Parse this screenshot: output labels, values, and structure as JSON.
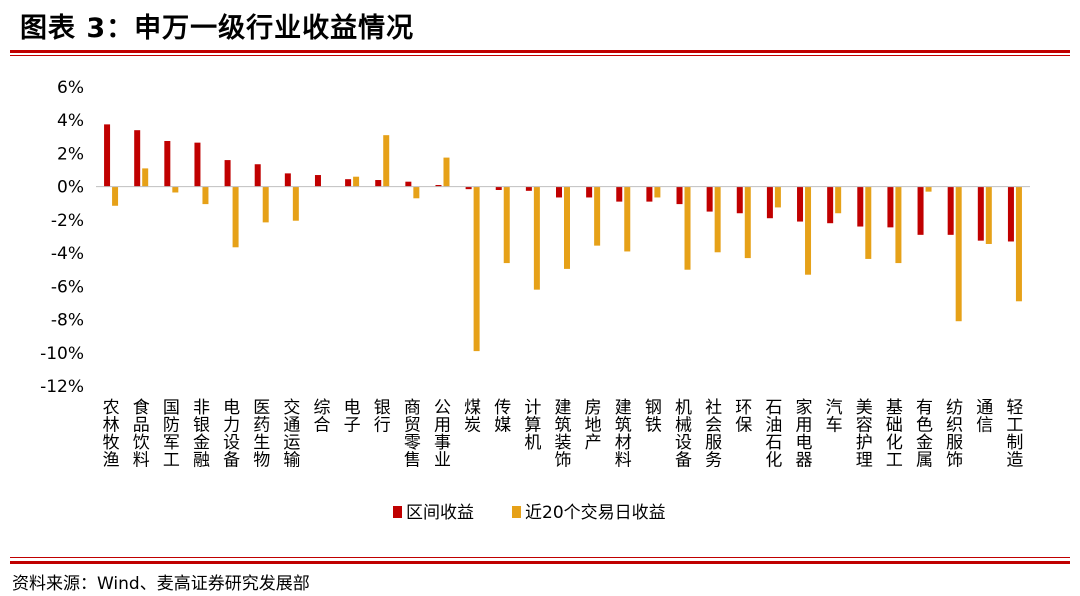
{
  "header": {
    "title": "图表 3：申万一级行业收益情况"
  },
  "footer": {
    "source": "资料来源：Wind、麦高证券研究发展部"
  },
  "colors": {
    "series1": "#c00000",
    "series2": "#e6a118",
    "rule": "#c00000"
  },
  "chart_data": {
    "type": "bar",
    "categories": [
      "农林牧渔",
      "食品饮料",
      "国防军工",
      "非银金融",
      "电力设备",
      "医药生物",
      "交通运输",
      "综合",
      "电子",
      "银行",
      "商贸零售",
      "公用事业",
      "煤炭",
      "传媒",
      "计算机",
      "建筑装饰",
      "房地产",
      "建筑材料",
      "钢铁",
      "机械设备",
      "社会服务",
      "环保",
      "石油石化",
      "家用电器",
      "汽车",
      "美容护理",
      "基础化工",
      "有色金属",
      "纺织服饰",
      "通信",
      "轻工制造"
    ],
    "series": [
      {
        "name": "区间收益",
        "values": [
          3.75,
          3.4,
          2.75,
          2.65,
          1.6,
          1.35,
          0.8,
          0.7,
          0.45,
          0.4,
          0.3,
          0.1,
          -0.15,
          -0.2,
          -0.25,
          -0.65,
          -0.65,
          -0.9,
          -0.9,
          -1.05,
          -1.5,
          -1.6,
          -1.9,
          -2.1,
          -2.2,
          -2.4,
          -2.45,
          -2.9,
          -2.9,
          -3.25,
          -3.3
        ]
      },
      {
        "name": "近20个交易日收益",
        "values": [
          -1.15,
          1.1,
          -0.35,
          -1.05,
          -3.65,
          -2.15,
          -2.05,
          0.0,
          0.6,
          3.1,
          -0.7,
          1.75,
          -9.9,
          -4.6,
          -6.2,
          -4.95,
          -3.55,
          -3.9,
          -0.65,
          -5.0,
          -3.95,
          -4.3,
          -1.25,
          -5.3,
          -1.6,
          -4.35,
          -4.6,
          -0.3,
          -8.1,
          -3.45,
          -6.9
        ]
      }
    ],
    "ylim": [
      -12,
      6
    ],
    "yticks": [
      6,
      4,
      2,
      0,
      -2,
      -4,
      -6,
      -8,
      -10,
      -12
    ],
    "ytick_labels": [
      "6%",
      "4%",
      "2%",
      "0%",
      "-2%",
      "-4%",
      "-6%",
      "-8%",
      "-10%",
      "-12%"
    ],
    "legend_position": "bottom",
    "grid": false
  }
}
